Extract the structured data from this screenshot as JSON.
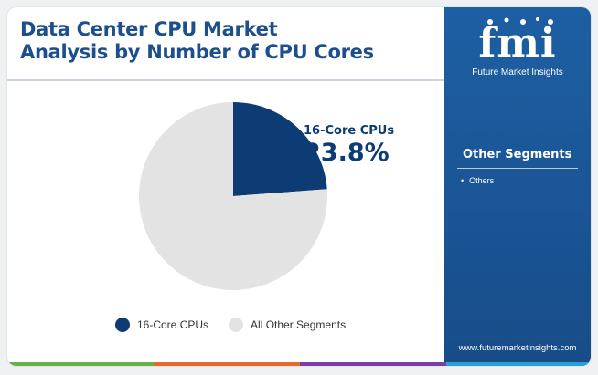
{
  "title": {
    "line1": "Data Center CPU Market",
    "line2": "Analysis by Number of CPU Cores"
  },
  "chart_data": {
    "type": "pie",
    "title": "Data Center CPU Market Analysis by Number of CPU Cores",
    "slices": [
      {
        "label": "16-Core CPUs",
        "value": 23.8,
        "color": "#0d3b73"
      },
      {
        "label": "All Other Segments",
        "value": 76.2,
        "color": "#e3e3e3"
      }
    ],
    "start_angle_deg": 0,
    "direction": "clockwise",
    "callout": {
      "label": "16-Core CPUs",
      "value_text": "23.8%"
    },
    "legend": {
      "position": "bottom"
    }
  },
  "legend": [
    {
      "label": "16-Core CPUs",
      "color": "#0d3b73"
    },
    {
      "label": "All Other Segments",
      "color": "#e3e3e3"
    }
  ],
  "sidebar": {
    "logo_mark": "fmi",
    "logo_caption": "Future Market Insights",
    "heading": "Other Segments",
    "items": [
      "Others"
    ],
    "website": "www.futuremarketinsights.com"
  },
  "colors": {
    "title": "#1c4f8c",
    "accent": "#0d3b73",
    "sidebar": "#1a5596",
    "bottom_bar": [
      "#6ab04c",
      "#e8692a",
      "#7b3fa0",
      "#2a9fd6"
    ]
  }
}
